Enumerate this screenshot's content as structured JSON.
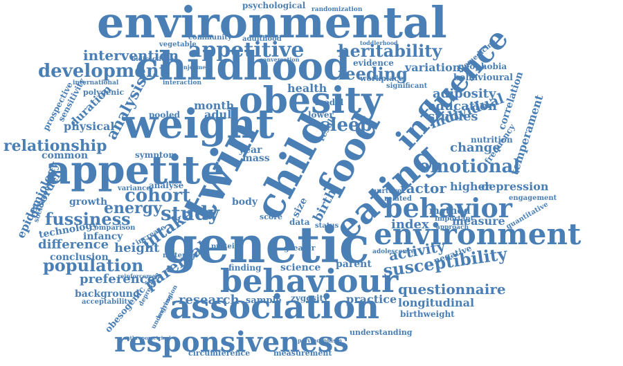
{
  "word_cloud": {
    "color": "#4a7fb5",
    "words": [
      {
        "text": "environmental",
        "weight": 62
      },
      {
        "text": "childhood",
        "weight": 56
      },
      {
        "text": "genetic",
        "weight": 72
      },
      {
        "text": "weight",
        "weight": 58
      },
      {
        "text": "appetite",
        "weight": 56
      },
      {
        "text": "obesity",
        "weight": 52
      },
      {
        "text": "twin",
        "weight": 64
      },
      {
        "text": "child",
        "weight": 58
      },
      {
        "text": "food",
        "weight": 52
      },
      {
        "text": "eating",
        "weight": 50
      },
      {
        "text": "influence",
        "weight": 42
      },
      {
        "text": "association",
        "weight": 48
      },
      {
        "text": "behaviour",
        "weight": 46
      },
      {
        "text": "responsiveness",
        "weight": 40
      },
      {
        "text": "environment",
        "weight": 42
      },
      {
        "text": "behavior",
        "weight": 38
      },
      {
        "text": "appetitive",
        "weight": 30
      },
      {
        "text": "heritability",
        "weight": 24
      },
      {
        "text": "development",
        "weight": 26
      },
      {
        "text": "intervention",
        "weight": 20
      },
      {
        "text": "feeding",
        "weight": 24
      },
      {
        "text": "variation",
        "weight": 16
      },
      {
        "text": "sleep",
        "weight": 26
      },
      {
        "text": "emotional",
        "weight": 26
      },
      {
        "text": "cohort",
        "weight": 26
      },
      {
        "text": "study",
        "weight": 28
      },
      {
        "text": "intake",
        "weight": 24
      },
      {
        "text": "energy",
        "weight": 22
      },
      {
        "text": "fussiness",
        "weight": 24
      },
      {
        "text": "relationship",
        "weight": 22
      },
      {
        "text": "analysis",
        "weight": 22
      },
      {
        "text": "population",
        "weight": 24
      },
      {
        "text": "susceptibility",
        "weight": 24
      },
      {
        "text": "questionnaire",
        "weight": 20
      },
      {
        "text": "activity",
        "weight": 20
      },
      {
        "text": "factor",
        "weight": 20
      },
      {
        "text": "higher",
        "weight": 16
      },
      {
        "text": "depression",
        "weight": 16
      },
      {
        "text": "index",
        "weight": 18
      },
      {
        "text": "measure",
        "weight": 16
      },
      {
        "text": "method",
        "weight": 14
      },
      {
        "text": "individual",
        "weight": 20
      },
      {
        "text": "studies",
        "weight": 18
      },
      {
        "text": "education",
        "weight": 18
      },
      {
        "text": "adiposity",
        "weight": 18
      },
      {
        "text": "change",
        "weight": 18
      },
      {
        "text": "nutrition",
        "weight": 12
      },
      {
        "text": "temperament",
        "weight": 16
      },
      {
        "text": "correlation",
        "weight": 14
      },
      {
        "text": "frequency",
        "weight": 12
      },
      {
        "text": "behavioural",
        "weight": 13
      },
      {
        "text": "neophobia",
        "weight": 12
      },
      {
        "text": "biomedicine",
        "weight": 10
      },
      {
        "text": "parental",
        "weight": 22
      },
      {
        "text": "preference",
        "weight": 18
      },
      {
        "text": "height",
        "weight": 18
      },
      {
        "text": "difference",
        "weight": 18
      },
      {
        "text": "conclusion",
        "weight": 14
      },
      {
        "text": "infancy",
        "weight": 14
      },
      {
        "text": "growth",
        "weight": 14
      },
      {
        "text": "technology",
        "weight": 14
      },
      {
        "text": "disorder",
        "weight": 16
      },
      {
        "text": "epidemiology",
        "weight": 16
      },
      {
        "text": "socioeconomic",
        "weight": 10
      },
      {
        "text": "physical",
        "weight": 16
      },
      {
        "text": "duration",
        "weight": 16
      },
      {
        "text": "common",
        "weight": 14
      },
      {
        "text": "prospective",
        "weight": 12
      },
      {
        "text": "sensitivity",
        "weight": 12
      },
      {
        "text": "research",
        "weight": 18
      },
      {
        "text": "sample",
        "weight": 13
      },
      {
        "text": "zygosity",
        "weight": 12
      },
      {
        "text": "practice",
        "weight": 16
      },
      {
        "text": "longitudinal",
        "weight": 16
      },
      {
        "text": "birthweight",
        "weight": 12
      },
      {
        "text": "science",
        "weight": 14
      },
      {
        "text": "parent",
        "weight": 14
      },
      {
        "text": "birth",
        "weight": 18
      },
      {
        "text": "background",
        "weight": 14
      },
      {
        "text": "acceptability",
        "weight": 10
      },
      {
        "text": "obesogenic",
        "weight": 13
      },
      {
        "text": "psychological",
        "weight": 12
      },
      {
        "text": "randomization",
        "weight": 9
      },
      {
        "text": "vegetable",
        "weight": 10
      },
      {
        "text": "community",
        "weight": 10
      },
      {
        "text": "adulthood",
        "weight": 10
      },
      {
        "text": "health",
        "weight": 16
      },
      {
        "text": "model",
        "weight": 12
      },
      {
        "text": "lower",
        "weight": 12
      },
      {
        "text": "month",
        "weight": 16
      },
      {
        "text": "adult",
        "weight": 16
      },
      {
        "text": "year",
        "weight": 14
      },
      {
        "text": "mass",
        "weight": 14
      },
      {
        "text": "body",
        "weight": 14
      },
      {
        "text": "evidence",
        "weight": 12
      },
      {
        "text": "workplace",
        "weight": 11
      },
      {
        "text": "polygenic",
        "weight": 11
      },
      {
        "text": "international",
        "weight": 9
      },
      {
        "text": "bidirectional",
        "weight": 9
      },
      {
        "text": "pooled",
        "weight": 12
      },
      {
        "text": "symptom",
        "weight": 12
      },
      {
        "text": "analyse",
        "weight": 12
      },
      {
        "text": "variance",
        "weight": 10
      },
      {
        "text": "circumference",
        "weight": 11
      },
      {
        "text": "measurement",
        "weight": 11
      },
      {
        "text": "understanding",
        "weight": 11
      },
      {
        "text": "finding",
        "weight": 12
      },
      {
        "text": "comparison",
        "weight": 10
      },
      {
        "text": "increase",
        "weight": 10
      },
      {
        "text": "maternal",
        "weight": 10
      },
      {
        "text": "protein",
        "weight": 10
      },
      {
        "text": "greater",
        "weight": 11
      },
      {
        "text": "significant",
        "weight": 10
      },
      {
        "text": "status",
        "weight": 10
      },
      {
        "text": "score",
        "weight": 11
      },
      {
        "text": "size",
        "weight": 14
      },
      {
        "text": "data",
        "weight": 12
      },
      {
        "text": "result",
        "weight": 12
      },
      {
        "text": "adolescence",
        "weight": 9
      },
      {
        "text": "related",
        "weight": 10
      },
      {
        "text": "important",
        "weight": 10
      },
      {
        "text": "approach",
        "weight": 9
      },
      {
        "text": "engagement",
        "weight": 10
      },
      {
        "text": "quantitative",
        "weight": 10
      },
      {
        "text": "negative",
        "weight": 12
      },
      {
        "text": "underlying",
        "weight": 9
      },
      {
        "text": "regression",
        "weight": 9
      },
      {
        "text": "depressive",
        "weight": 9
      },
      {
        "text": "reinforcement",
        "weight": 8
      },
      {
        "text": "anthropometrical",
        "weight": 7
      },
      {
        "text": "polymorphism",
        "weight": 8
      },
      {
        "text": "nurture",
        "weight": 10
      },
      {
        "text": "interaction",
        "weight": 9
      },
      {
        "text": "toddlerhood",
        "weight": 8
      },
      {
        "text": "conversation",
        "weight": 8
      },
      {
        "text": "enjoyment",
        "weight": 8
      }
    ]
  }
}
